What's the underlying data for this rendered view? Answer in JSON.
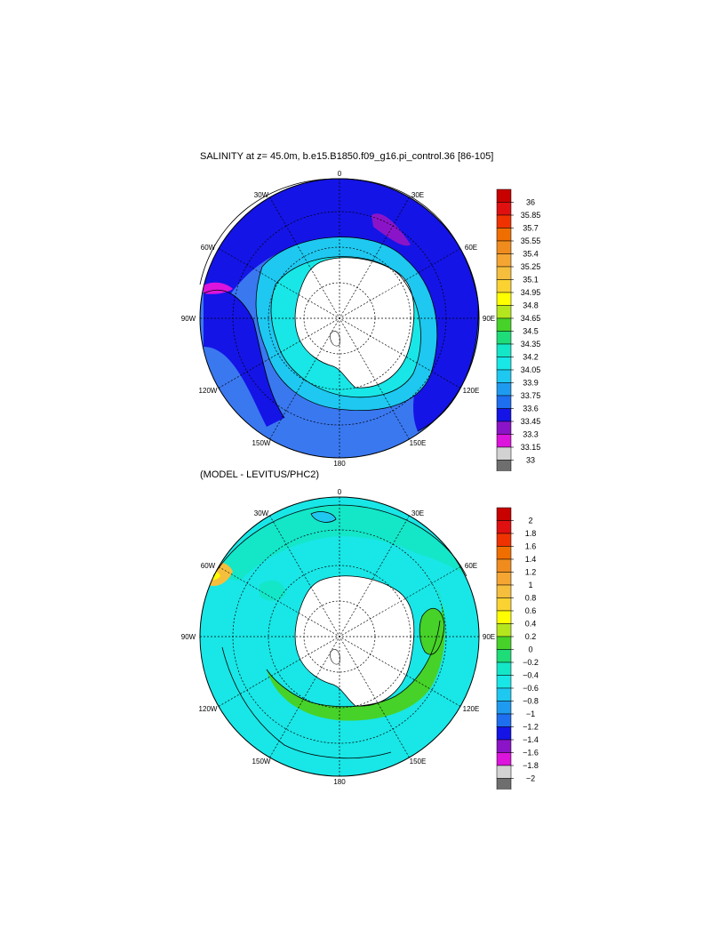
{
  "chart_data": [
    {
      "type": "heatmap",
      "title": "SALINITY at z=  45.0m, b.e15.B1850.f09_g16.pi_control.36 [86-105]",
      "projection": "south polar stereographic",
      "longitude_labels": [
        "0",
        "30E",
        "60E",
        "90E",
        "120E",
        "150E",
        "180",
        "150W",
        "120W",
        "90W",
        "60W",
        "30W"
      ],
      "colorbar": {
        "levels": [
          "36",
          "35.85",
          "35.7",
          "35.55",
          "35.4",
          "35.25",
          "35.1",
          "34.95",
          "34.8",
          "34.65",
          "34.5",
          "34.35",
          "34.2",
          "34.05",
          "33.9",
          "33.75",
          "33.6",
          "33.45",
          "33.3",
          "33.15",
          "33"
        ],
        "colors": [
          "#c80000",
          "#e01010",
          "#f03200",
          "#f06e00",
          "#f08c1e",
          "#f5a532",
          "#f5be3c",
          "#fad232",
          "#ffff00",
          "#b4e61e",
          "#46d228",
          "#1edc78",
          "#14e6c8",
          "#19e6e6",
          "#1ec8f0",
          "#1e9bf0",
          "#1e6ef0",
          "#1414e6",
          "#8c14c8",
          "#dc14dc",
          "#d2d2d2",
          "#6e6e6e"
        ]
      }
    },
    {
      "type": "heatmap",
      "title": "(MODEL - LEVITUS/PHC2)",
      "projection": "south polar stereographic",
      "longitude_labels": [
        "0",
        "30E",
        "60E",
        "90E",
        "120E",
        "150E",
        "180",
        "150W",
        "120W",
        "90W",
        "60W",
        "30W"
      ],
      "colorbar": {
        "levels": [
          "2",
          "1.8",
          "1.6",
          "1.4",
          "1.2",
          "1",
          "0.8",
          "0.6",
          "0.4",
          "0.2",
          "0",
          "−0.2",
          "−0.4",
          "−0.6",
          "−0.8",
          "−1",
          "−1.2",
          "−1.4",
          "−1.6",
          "−1.8",
          "−2"
        ],
        "colors": [
          "#c80000",
          "#e01010",
          "#f03200",
          "#f06e00",
          "#f08c1e",
          "#f5a532",
          "#f5be3c",
          "#fad232",
          "#ffff00",
          "#b4e61e",
          "#46d228",
          "#1edc78",
          "#14e6c8",
          "#19e6e6",
          "#1ec8f0",
          "#1e9bf0",
          "#1e6ef0",
          "#1414e6",
          "#8c14c8",
          "#dc14dc",
          "#d2d2d2",
          "#6e6e6e"
        ]
      }
    }
  ]
}
